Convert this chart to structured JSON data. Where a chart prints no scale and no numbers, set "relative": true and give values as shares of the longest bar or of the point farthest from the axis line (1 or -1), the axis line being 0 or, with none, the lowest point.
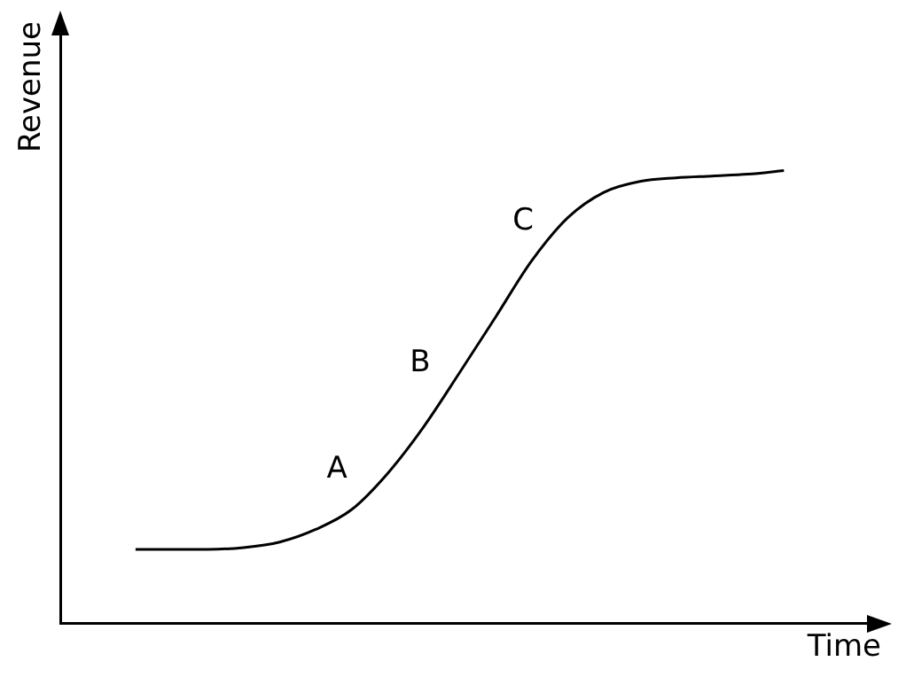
{
  "chart_data": {
    "type": "line",
    "relative": true,
    "xlabel": "Time",
    "ylabel": "Revenue",
    "color": "#000000",
    "marker": "none",
    "line_style": "solid",
    "legend": false,
    "categories": [
      null,
      null,
      null,
      null,
      null,
      null,
      null,
      null,
      null,
      null,
      null,
      null,
      null,
      null,
      null,
      null,
      null,
      null,
      null
    ],
    "values": [
      0.163,
      0.163,
      0.163,
      0.167,
      0.179,
      0.207,
      0.251,
      0.331,
      0.434,
      0.554,
      0.677,
      0.801,
      0.896,
      0.952,
      0.976,
      0.984,
      0.988,
      0.992,
      1
    ],
    "annotations": [
      "A",
      "B",
      "C"
    ]
  }
}
